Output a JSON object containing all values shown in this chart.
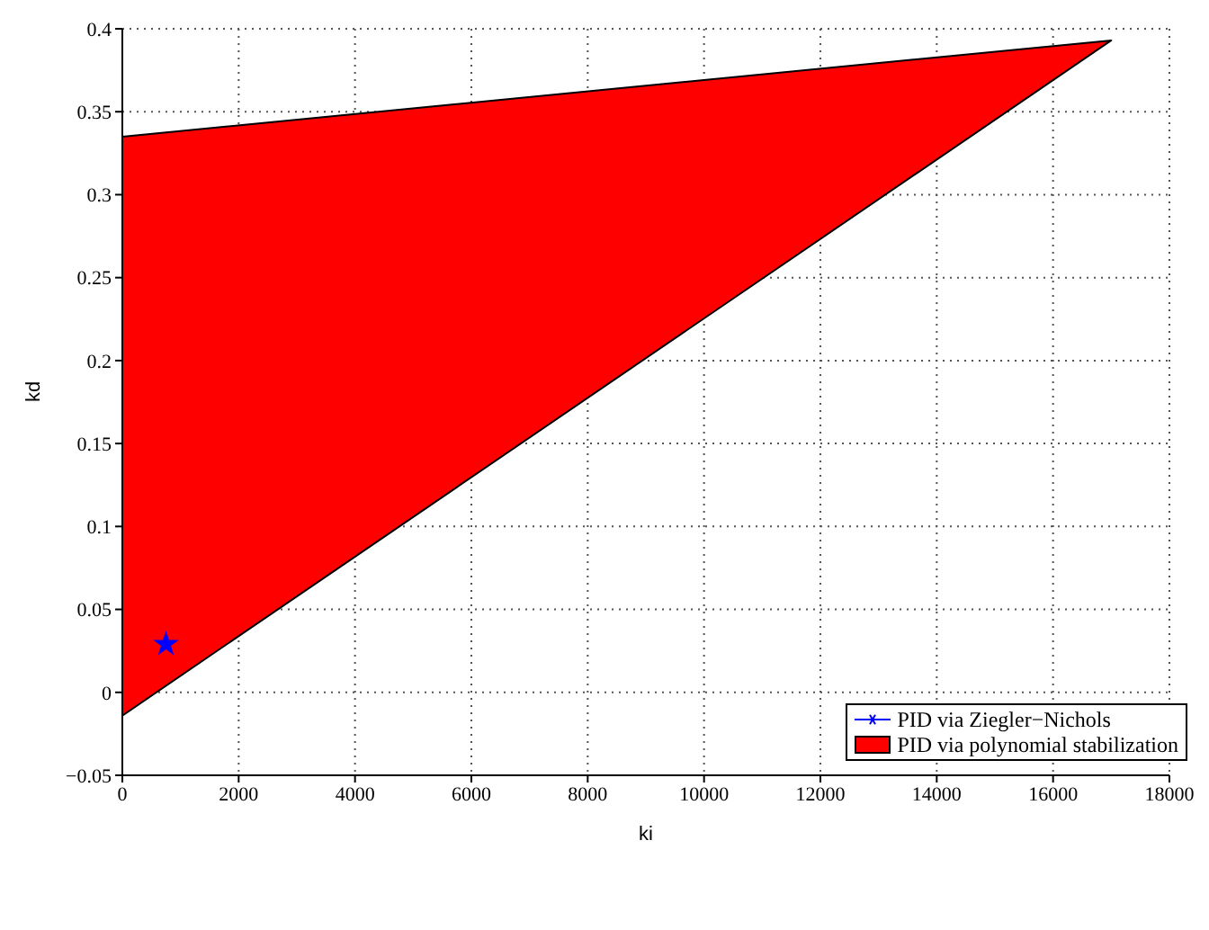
{
  "chart_data": {
    "type": "area",
    "xlabel": "ki",
    "ylabel": "kd",
    "series": [
      {
        "name": "PID via Ziegler−Nichols",
        "type": "scatter",
        "color": "#0000ff",
        "marker": "star",
        "x": [
          750
        ],
        "values": [
          0.029
        ]
      },
      {
        "name": "PID via polynomial stabilization",
        "color": "#ff0000",
        "x": [
          0,
          17000,
          0,
          0
        ],
        "values": [
          0.335,
          0.393,
          -0.014,
          0.335
        ]
      }
    ],
    "xlim": [
      0,
      18000
    ],
    "xticks": [
      0,
      2000,
      4000,
      6000,
      8000,
      10000,
      12000,
      14000,
      16000,
      18000
    ],
    "ylim": [
      -0.05,
      0.4
    ],
    "yticks": [
      -0.05,
      0,
      0.05,
      0.1,
      0.15,
      0.2,
      0.25,
      0.3,
      0.35,
      0.4
    ],
    "grid": true,
    "legend": "bottom right"
  }
}
